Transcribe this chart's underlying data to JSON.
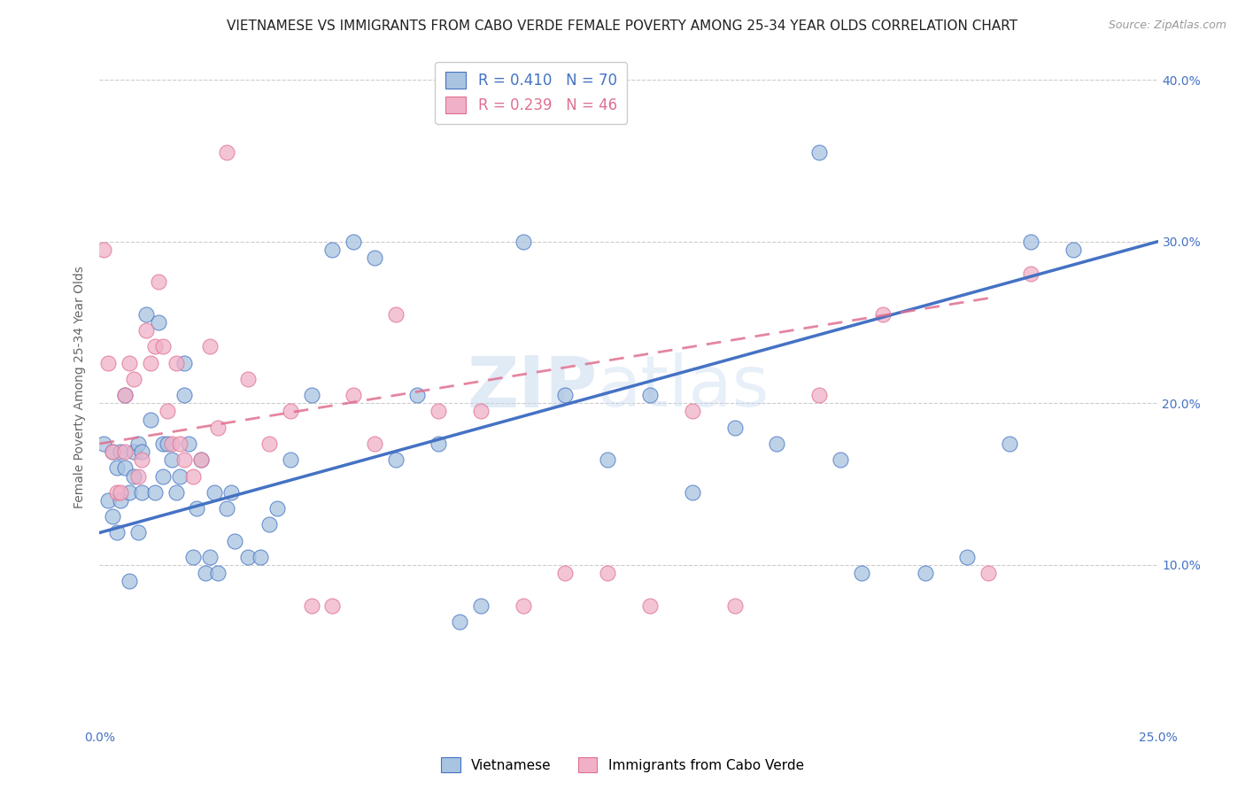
{
  "title": "VIETNAMESE VS IMMIGRANTS FROM CABO VERDE FEMALE POVERTY AMONG 25-34 YEAR OLDS CORRELATION CHART",
  "source": "Source: ZipAtlas.com",
  "ylabel": "Female Poverty Among 25-34 Year Olds",
  "xlim": [
    0.0,
    0.25
  ],
  "ylim": [
    0.0,
    0.42
  ],
  "xtick_positions": [
    0.0,
    0.05,
    0.1,
    0.15,
    0.2,
    0.25
  ],
  "xticklabels": [
    "0.0%",
    "",
    "",
    "",
    "",
    "25.0%"
  ],
  "ytick_positions": [
    0.1,
    0.2,
    0.3,
    0.4
  ],
  "ytick_labels_right": [
    "10.0%",
    "20.0%",
    "30.0%",
    "40.0%"
  ],
  "background_color": "#ffffff",
  "watermark_part1": "ZIP",
  "watermark_part2": "atlas",
  "color_blue": "#a8c4e0",
  "color_pink": "#f0b0c8",
  "line_blue": "#4472c4",
  "line_pink": "#e07090",
  "title_fontsize": 11,
  "axis_label_fontsize": 10,
  "tick_fontsize": 10,
  "blue_x": [
    0.001,
    0.002,
    0.003,
    0.003,
    0.004,
    0.004,
    0.005,
    0.005,
    0.006,
    0.006,
    0.007,
    0.007,
    0.008,
    0.008,
    0.009,
    0.009,
    0.01,
    0.01,
    0.011,
    0.012,
    0.013,
    0.014,
    0.015,
    0.015,
    0.016,
    0.017,
    0.018,
    0.019,
    0.02,
    0.02,
    0.021,
    0.022,
    0.023,
    0.024,
    0.025,
    0.026,
    0.027,
    0.028,
    0.03,
    0.031,
    0.032,
    0.035,
    0.038,
    0.04,
    0.042,
    0.045,
    0.05,
    0.055,
    0.06,
    0.065,
    0.07,
    0.075,
    0.08,
    0.085,
    0.09,
    0.1,
    0.11,
    0.12,
    0.13,
    0.14,
    0.15,
    0.16,
    0.17,
    0.175,
    0.18,
    0.195,
    0.205,
    0.215,
    0.22,
    0.23
  ],
  "blue_y": [
    0.175,
    0.14,
    0.13,
    0.17,
    0.16,
    0.12,
    0.14,
    0.17,
    0.16,
    0.205,
    0.09,
    0.145,
    0.155,
    0.17,
    0.12,
    0.175,
    0.145,
    0.17,
    0.255,
    0.19,
    0.145,
    0.25,
    0.155,
    0.175,
    0.175,
    0.165,
    0.145,
    0.155,
    0.205,
    0.225,
    0.175,
    0.105,
    0.135,
    0.165,
    0.095,
    0.105,
    0.145,
    0.095,
    0.135,
    0.145,
    0.115,
    0.105,
    0.105,
    0.125,
    0.135,
    0.165,
    0.205,
    0.295,
    0.3,
    0.29,
    0.165,
    0.205,
    0.175,
    0.065,
    0.075,
    0.3,
    0.205,
    0.165,
    0.205,
    0.145,
    0.185,
    0.175,
    0.355,
    0.165,
    0.095,
    0.095,
    0.105,
    0.175,
    0.3,
    0.295
  ],
  "pink_x": [
    0.001,
    0.002,
    0.003,
    0.004,
    0.005,
    0.006,
    0.006,
    0.007,
    0.008,
    0.009,
    0.01,
    0.011,
    0.012,
    0.013,
    0.014,
    0.015,
    0.016,
    0.017,
    0.018,
    0.019,
    0.02,
    0.022,
    0.024,
    0.026,
    0.028,
    0.03,
    0.035,
    0.04,
    0.045,
    0.05,
    0.055,
    0.06,
    0.065,
    0.07,
    0.08,
    0.09,
    0.1,
    0.11,
    0.12,
    0.13,
    0.14,
    0.15,
    0.17,
    0.185,
    0.21,
    0.22
  ],
  "pink_y": [
    0.295,
    0.225,
    0.17,
    0.145,
    0.145,
    0.17,
    0.205,
    0.225,
    0.215,
    0.155,
    0.165,
    0.245,
    0.225,
    0.235,
    0.275,
    0.235,
    0.195,
    0.175,
    0.225,
    0.175,
    0.165,
    0.155,
    0.165,
    0.235,
    0.185,
    0.355,
    0.215,
    0.175,
    0.195,
    0.075,
    0.075,
    0.205,
    0.175,
    0.255,
    0.195,
    0.195,
    0.075,
    0.095,
    0.095,
    0.075,
    0.195,
    0.075,
    0.205,
    0.255,
    0.095,
    0.28
  ],
  "blue_line_x0": 0.0,
  "blue_line_y0": 0.12,
  "blue_line_x1": 0.25,
  "blue_line_y1": 0.3,
  "pink_line_x0": 0.0,
  "pink_line_y0": 0.175,
  "pink_line_x1": 0.21,
  "pink_line_y1": 0.265
}
